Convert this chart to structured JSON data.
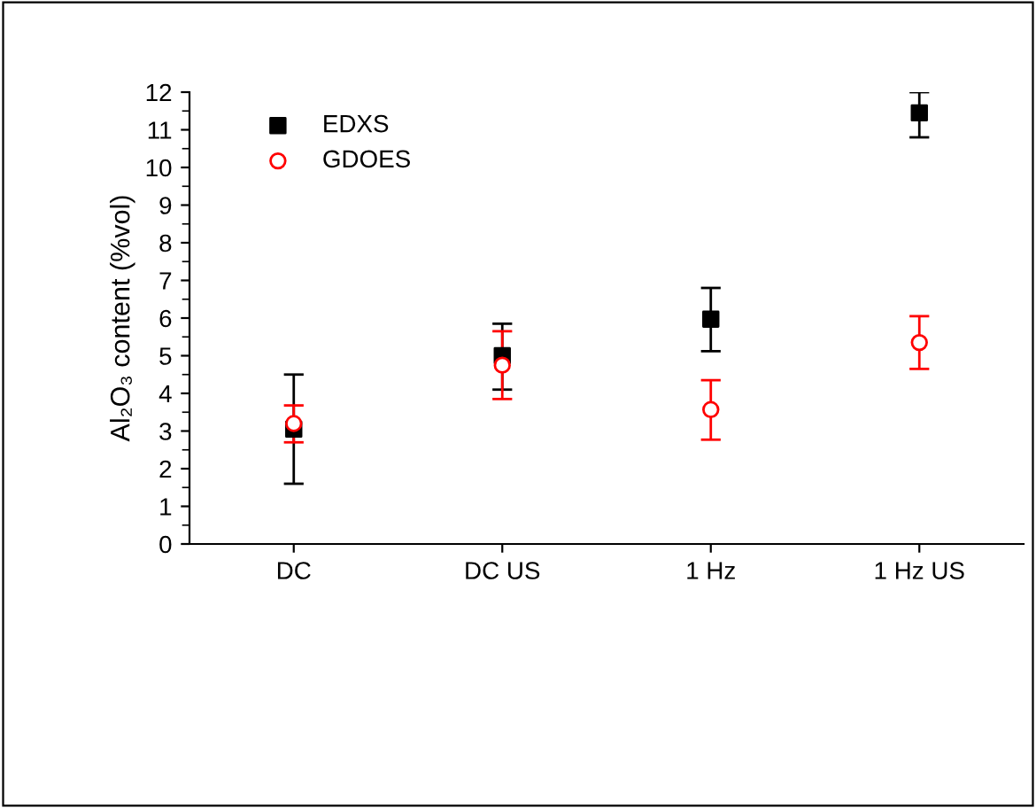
{
  "chart_data": {
    "type": "scatter",
    "ylabel": "Al₂O₃ content (%vol)",
    "categories": [
      "DC",
      "DC US",
      "1 Hz",
      "1 Hz US"
    ],
    "series": [
      {
        "name": "EDXS",
        "color": "#000000",
        "marker": "square",
        "values": [
          3.05,
          5.0,
          5.97,
          11.45
        ],
        "errors": [
          [
            1.6,
            4.5
          ],
          [
            4.1,
            5.85
          ],
          [
            5.12,
            6.8
          ],
          [
            10.8,
            12.0
          ]
        ]
      },
      {
        "name": "GDOES",
        "color": "#ff0000",
        "marker": "circle",
        "values": [
          3.2,
          4.75,
          3.57,
          5.35
        ],
        "errors": [
          [
            2.7,
            3.68
          ],
          [
            3.85,
            5.65
          ],
          [
            2.77,
            4.35
          ],
          [
            4.65,
            6.05
          ]
        ]
      }
    ],
    "ylim": [
      0,
      12
    ],
    "yticks": [
      0,
      1,
      2,
      3,
      4,
      5,
      6,
      7,
      8,
      9,
      10,
      11,
      12
    ],
    "grid": false,
    "legend": "top left"
  }
}
